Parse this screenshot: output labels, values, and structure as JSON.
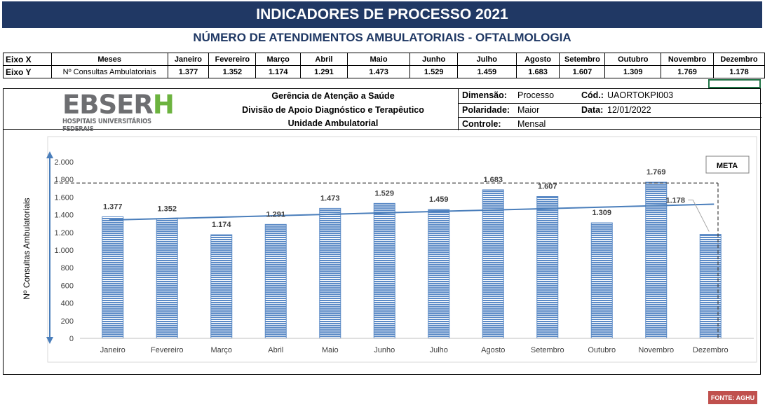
{
  "header": {
    "title": "INDICADORES DE PROCESSO 2021",
    "subtitle": "NÚMERO DE ATENDIMENTOS AMBULATORIAIS - OFTALMOLOGIA"
  },
  "axes_table": {
    "x_label": "Eixo X",
    "x_name": "Meses",
    "y_label": "Eixo Y",
    "y_name": "Nº Consultas Ambulatoriais",
    "months": [
      "Janeiro",
      "Fevereiro",
      "Março",
      "Abril",
      "Maio",
      "Junho",
      "Julho",
      "Agosto",
      "Setembro",
      "Outubro",
      "Novembro",
      "Dezembro"
    ],
    "values": [
      "1.377",
      "1.352",
      "1.174",
      "1.291",
      "1.473",
      "1.529",
      "1.459",
      "1.683",
      "1.607",
      "1.309",
      "1.769",
      "1.178"
    ]
  },
  "info": {
    "logo_text": "EBSER",
    "logo_accent": "H",
    "logo_subtitle": "HOSPITAIS UNIVERSITÁRIOS FEDERAIS",
    "org_line1": "Gerência de Atenção a Saúde",
    "org_line2": "Divisão de Apoio Diagnóstico e Terapêutico",
    "org_line3": "Unidade Ambulatorial",
    "dimensao_label": "Dimensão:",
    "dimensao_value": "Processo",
    "cod_label": "Cód.:",
    "cod_value": "UAORTOKPI003",
    "polaridade_label": "Polaridade:",
    "polaridade_value": "Maior",
    "data_label": "Data:",
    "data_value": "12/01/2022",
    "controle_label": "Controle:",
    "controle_value": "Mensal"
  },
  "footer": {
    "source": "FONTE: AGHU"
  },
  "colors": {
    "title_bg": "#203864",
    "subtitle_text": "#1f3864",
    "bar": "#5b8ac6",
    "trend": "#4a7ebb",
    "source_bg": "#c0504d"
  },
  "chart_data": {
    "type": "bar",
    "title": "",
    "xlabel": "",
    "ylabel": "Nº Consultas Ambulatoriais",
    "categories": [
      "Janeiro",
      "Fevereiro",
      "Março",
      "Abril",
      "Maio",
      "Junho",
      "Julho",
      "Agosto",
      "Setembro",
      "Outubro",
      "Novembro",
      "Dezembro"
    ],
    "values": [
      1377,
      1352,
      1174,
      1291,
      1473,
      1529,
      1459,
      1683,
      1607,
      1309,
      1769,
      1178
    ],
    "data_labels": [
      "1.377",
      "1.352",
      "1.174",
      "1.291",
      "1.473",
      "1.529",
      "1.459",
      "1.683",
      "1.607",
      "1.309",
      "1.769",
      "1.178"
    ],
    "yticks": [
      0,
      200,
      400,
      600,
      800,
      1000,
      1200,
      1400,
      1600,
      1800,
      2000
    ],
    "ytick_labels": [
      "0",
      "200",
      "400",
      "600",
      "800",
      "1.000",
      "1.200",
      "1.400",
      "1.600",
      "1.800",
      "2.000"
    ],
    "ylim": [
      0,
      2000
    ],
    "meta": {
      "label": "META",
      "value": 1760
    },
    "trendline": {
      "type": "linear",
      "start": 1340,
      "end": 1520
    },
    "grid": false,
    "legend": "none"
  }
}
